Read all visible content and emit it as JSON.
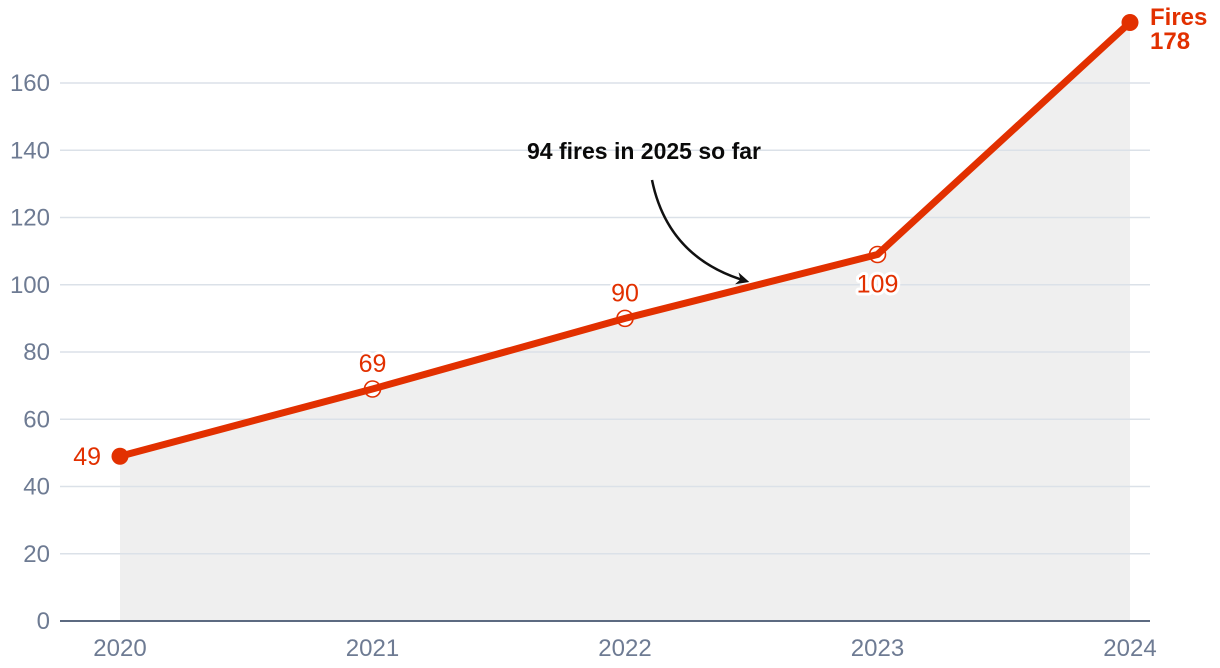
{
  "colors": {
    "line": "#e23000",
    "value_label": "#e23000",
    "axis_text": "#6e7b93",
    "gridline": "#dbe1e8",
    "axis_line": "#5c6a81",
    "area_fill": "#efefef",
    "annotation_text": "#0a0a0a",
    "end_label_text": "#e23000"
  },
  "chart_data": {
    "type": "line",
    "title": "",
    "xlabel": "",
    "ylabel": "",
    "categories": [
      "2020",
      "2021",
      "2022",
      "2023",
      "2024"
    ],
    "series": [
      {
        "name": "Fires",
        "values": [
          49,
          69,
          90,
          109,
          178
        ]
      }
    ],
    "value_labels": [
      "49",
      "69",
      "90",
      "109",
      "178"
    ],
    "value_label_positions": [
      "left",
      "above",
      "above",
      "below",
      "right"
    ],
    "point_markers": [
      "filled",
      "open",
      "open",
      "open",
      "filled"
    ],
    "yticks": [
      0,
      20,
      40,
      60,
      80,
      100,
      120,
      140,
      160
    ],
    "ylim": [
      0,
      178
    ],
    "grid": "horizontal",
    "area_fill": true,
    "legend_position": "end-of-line",
    "end_label": {
      "series": "Fires",
      "value": "178"
    },
    "annotation": {
      "text": "94 fires in 2025 so far"
    }
  }
}
